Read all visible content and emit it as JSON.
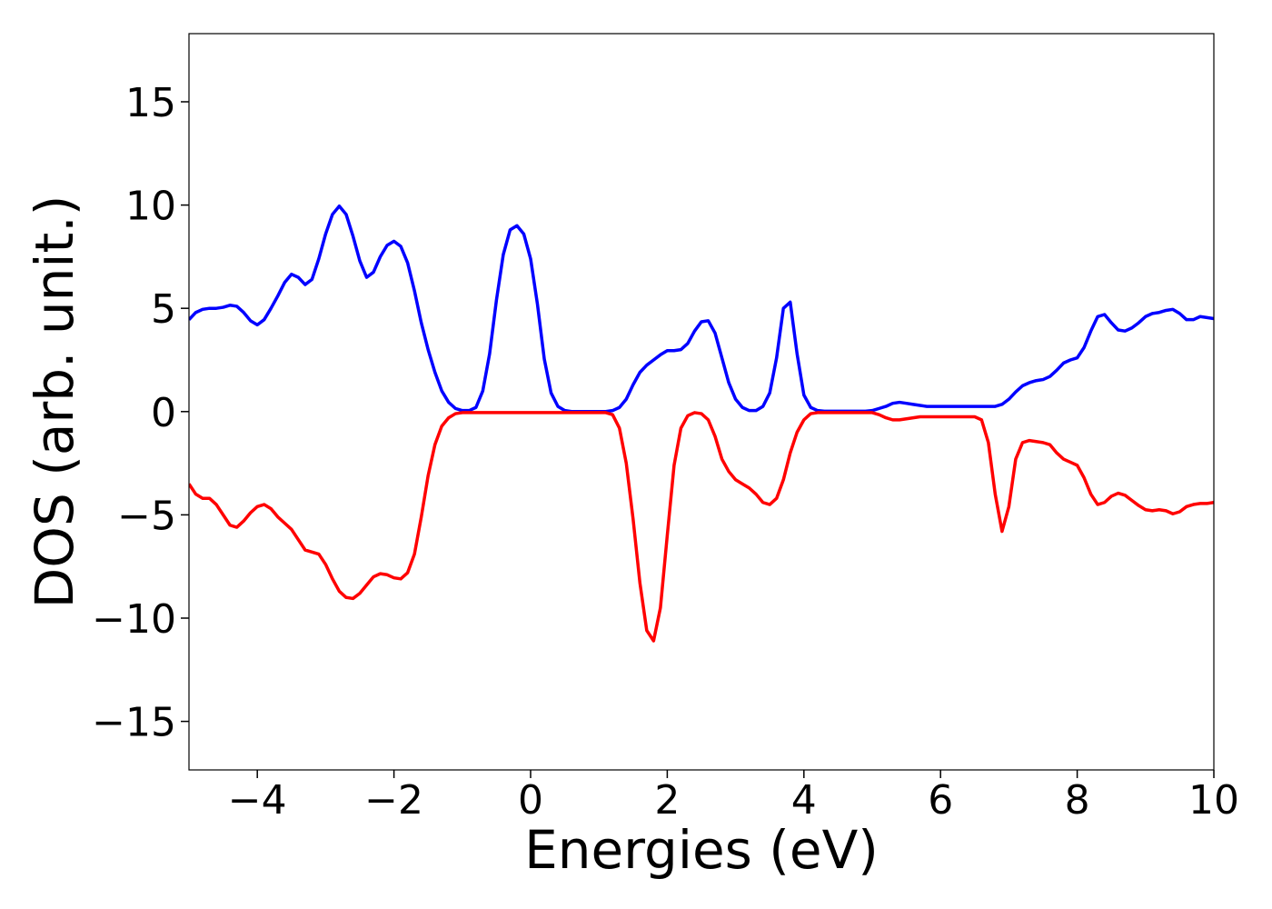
{
  "chart_data": {
    "type": "line",
    "xlabel": "Energies (eV)",
    "ylabel": "DOS (arb. unit.)",
    "xlim": [
      -5,
      10
    ],
    "ylim": [
      -17.35,
      18.3
    ],
    "xticks": [
      {
        "value": -4,
        "label": "−4"
      },
      {
        "value": -2,
        "label": "−2"
      },
      0,
      2,
      4,
      6,
      8,
      10
    ],
    "yticks": [
      {
        "value": -15,
        "label": "−15"
      },
      {
        "value": -10,
        "label": "−10"
      },
      {
        "value": -5,
        "label": "−5"
      },
      0,
      5,
      10,
      15
    ],
    "grid": false,
    "x": [
      -5,
      -4.9,
      -4.8,
      -4.7,
      -4.6,
      -4.5,
      -4.4,
      -4.3,
      -4.2,
      -4.1,
      -4,
      -3.9,
      -3.8,
      -3.7,
      -3.6,
      -3.5,
      -3.4,
      -3.3,
      -3.2,
      -3.1,
      -3,
      -2.9,
      -2.8,
      -2.7,
      -2.6,
      -2.5,
      -2.4,
      -2.3,
      -2.2,
      -2.1,
      -2,
      -1.9,
      -1.8,
      -1.7,
      -1.6,
      -1.5,
      -1.4,
      -1.3,
      -1.2,
      -1.1,
      -1,
      -0.9,
      -0.8,
      -0.7,
      -0.6,
      -0.5,
      -0.4,
      -0.3,
      -0.2,
      -0.1,
      0,
      0.1,
      0.2,
      0.3,
      0.4,
      0.5,
      0.6,
      0.7,
      0.8,
      0.9,
      1,
      1.1,
      1.2,
      1.3,
      1.4,
      1.5,
      1.6,
      1.7,
      1.8,
      1.9,
      2,
      2.1,
      2.2,
      2.3,
      2.4,
      2.5,
      2.6,
      2.7,
      2.8,
      2.9,
      3,
      3.1,
      3.2,
      3.3,
      3.4,
      3.5,
      3.6,
      3.7,
      3.8,
      3.9,
      4,
      4.1,
      4.2,
      4.3,
      4.4,
      4.5,
      4.6,
      4.7,
      4.8,
      4.9,
      5,
      5.1,
      5.2,
      5.3,
      5.4,
      5.5,
      5.6,
      5.7,
      5.8,
      5.9,
      6,
      6.1,
      6.2,
      6.3,
      6.4,
      6.5,
      6.6,
      6.7,
      6.8,
      6.9,
      7,
      7.1,
      7.2,
      7.3,
      7.4,
      7.5,
      7.6,
      7.7,
      7.8,
      7.9,
      8,
      8.1,
      8.2,
      8.3,
      8.4,
      8.5,
      8.6,
      8.7,
      8.8,
      8.9,
      9,
      9.1,
      9.2,
      9.3,
      9.4,
      9.5,
      9.6,
      9.7,
      9.8,
      9.9,
      10
    ],
    "series": [
      {
        "color": "#0000ff",
        "values": [
          4.45,
          4.8,
          4.95,
          5.0,
          5.0,
          5.05,
          5.15,
          5.1,
          4.8,
          4.4,
          4.2,
          4.45,
          5.0,
          5.6,
          6.25,
          6.65,
          6.5,
          6.15,
          6.4,
          7.4,
          8.6,
          9.55,
          9.95,
          9.55,
          8.5,
          7.3,
          6.5,
          6.75,
          7.5,
          8.05,
          8.25,
          8.0,
          7.2,
          5.85,
          4.3,
          3.0,
          1.9,
          1.0,
          0.45,
          0.15,
          0.05,
          0.05,
          0.2,
          1.0,
          2.8,
          5.4,
          7.6,
          8.8,
          9.0,
          8.6,
          7.4,
          5.2,
          2.55,
          0.9,
          0.25,
          0.05,
          0,
          0,
          0,
          0,
          0,
          0,
          0.05,
          0.2,
          0.6,
          1.3,
          1.9,
          2.25,
          2.5,
          2.75,
          2.95,
          2.95,
          3.0,
          3.3,
          3.9,
          4.35,
          4.4,
          3.8,
          2.6,
          1.4,
          0.6,
          0.2,
          0.05,
          0.05,
          0.25,
          0.9,
          2.6,
          5.0,
          5.3,
          2.8,
          0.8,
          0.2,
          0.05,
          0.02,
          0.02,
          0.02,
          0.02,
          0.02,
          0.02,
          0.02,
          0.05,
          0.15,
          0.25,
          0.4,
          0.45,
          0.4,
          0.35,
          0.3,
          0.25,
          0.25,
          0.25,
          0.25,
          0.25,
          0.25,
          0.25,
          0.25,
          0.25,
          0.25,
          0.25,
          0.35,
          0.6,
          0.95,
          1.25,
          1.4,
          1.5,
          1.55,
          1.7,
          2.0,
          2.35,
          2.5,
          2.6,
          3.1,
          3.9,
          4.6,
          4.7,
          4.3,
          3.95,
          3.9,
          4.05,
          4.3,
          4.6,
          4.75,
          4.8,
          4.9,
          4.95,
          4.75,
          4.45,
          4.45,
          4.6,
          4.55,
          4.5
        ]
      },
      {
        "color": "#ff0000",
        "values": [
          -3.5,
          -4.0,
          -4.2,
          -4.2,
          -4.5,
          -5.0,
          -5.5,
          -5.6,
          -5.3,
          -4.9,
          -4.6,
          -4.5,
          -4.7,
          -5.1,
          -5.4,
          -5.7,
          -6.2,
          -6.7,
          -6.8,
          -6.9,
          -7.4,
          -8.1,
          -8.7,
          -9.0,
          -9.05,
          -8.8,
          -8.4,
          -8.0,
          -7.85,
          -7.9,
          -8.05,
          -8.1,
          -7.8,
          -6.9,
          -5.1,
          -3.1,
          -1.6,
          -0.7,
          -0.3,
          -0.1,
          -0.05,
          -0.05,
          -0.05,
          -0.05,
          -0.05,
          -0.05,
          -0.05,
          -0.05,
          -0.05,
          -0.05,
          -0.05,
          -0.05,
          -0.05,
          -0.05,
          -0.05,
          -0.05,
          -0.05,
          -0.05,
          -0.05,
          -0.05,
          -0.05,
          -0.05,
          -0.15,
          -0.8,
          -2.5,
          -5.2,
          -8.3,
          -10.6,
          -11.1,
          -9.5,
          -6.0,
          -2.6,
          -0.8,
          -0.2,
          -0.05,
          -0.1,
          -0.4,
          -1.2,
          -2.3,
          -2.9,
          -3.3,
          -3.5,
          -3.7,
          -4.0,
          -4.4,
          -4.5,
          -4.2,
          -3.3,
          -2.0,
          -1.0,
          -0.4,
          -0.1,
          -0.05,
          -0.05,
          -0.05,
          -0.05,
          -0.05,
          -0.05,
          -0.05,
          -0.05,
          -0.05,
          -0.15,
          -0.3,
          -0.4,
          -0.4,
          -0.35,
          -0.3,
          -0.25,
          -0.25,
          -0.25,
          -0.25,
          -0.25,
          -0.25,
          -0.25,
          -0.25,
          -0.25,
          -0.4,
          -1.5,
          -4.0,
          -5.8,
          -4.6,
          -2.3,
          -1.5,
          -1.4,
          -1.45,
          -1.5,
          -1.6,
          -2.0,
          -2.3,
          -2.45,
          -2.6,
          -3.2,
          -4.0,
          -4.5,
          -4.4,
          -4.1,
          -3.95,
          -4.05,
          -4.3,
          -4.55,
          -4.75,
          -4.8,
          -4.75,
          -4.8,
          -4.95,
          -4.85,
          -4.6,
          -4.5,
          -4.45,
          -4.45,
          -4.4
        ]
      }
    ]
  }
}
